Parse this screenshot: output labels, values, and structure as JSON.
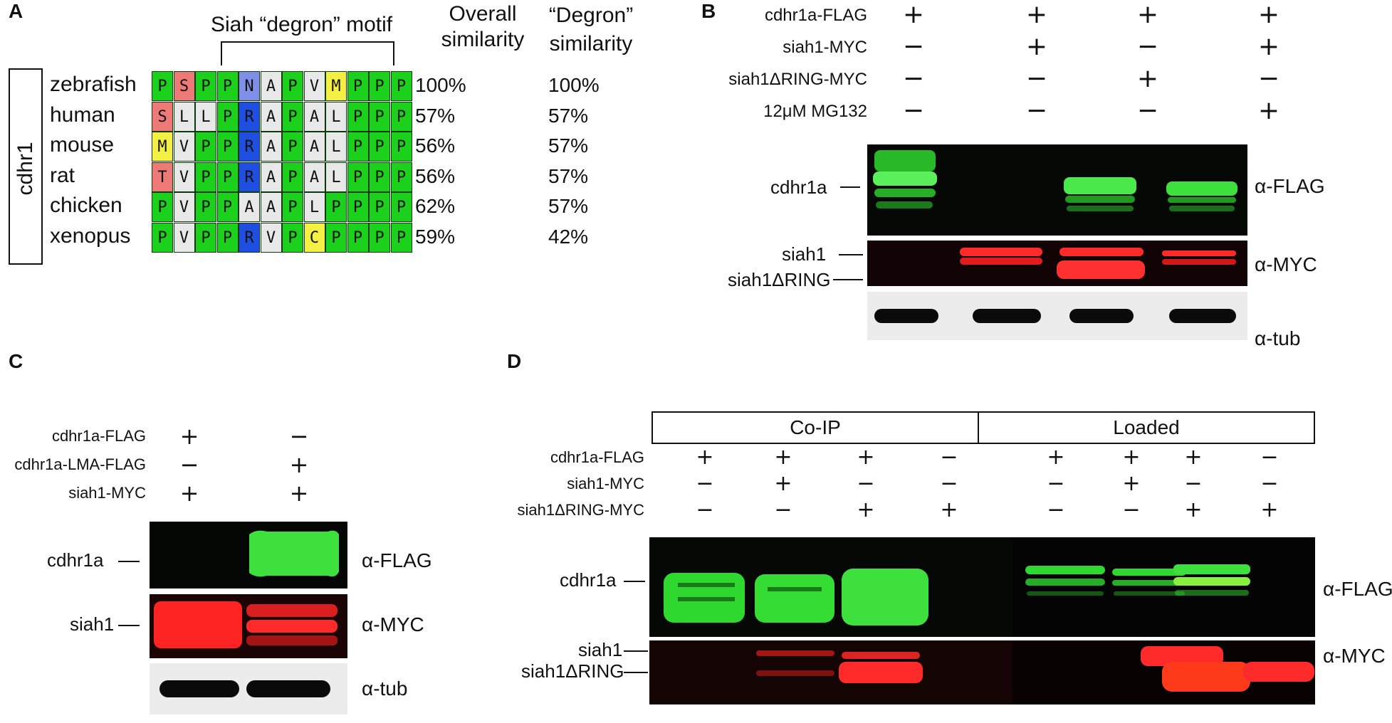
{
  "panels": {
    "A": {
      "label": "A",
      "motif_title": "Siah “degron” motif",
      "col_overall": [
        "Overall",
        "similarity"
      ],
      "col_degron": [
        "“Degron”",
        "similarity"
      ],
      "group_label": "cdhr1",
      "rows": [
        {
          "species": "zebrafish",
          "seq": [
            "P",
            "S",
            "P",
            "P",
            "N",
            "A",
            "P",
            "V",
            "M",
            "P",
            "P",
            "P"
          ],
          "overall": "100%",
          "degron": "100%"
        },
        {
          "species": "human",
          "seq": [
            "S",
            "L",
            "L",
            "P",
            "R",
            "A",
            "P",
            "A",
            "L",
            "P",
            "P",
            "P"
          ],
          "overall": "57%",
          "degron": "57%"
        },
        {
          "species": "mouse",
          "seq": [
            "M",
            "V",
            "P",
            "P",
            "R",
            "A",
            "P",
            "A",
            "L",
            "P",
            "P",
            "P"
          ],
          "overall": "56%",
          "degron": "57%"
        },
        {
          "species": "rat",
          "seq": [
            "T",
            "V",
            "P",
            "P",
            "R",
            "A",
            "P",
            "A",
            "L",
            "P",
            "P",
            "P"
          ],
          "overall": "56%",
          "degron": "57%"
        },
        {
          "species": "chicken",
          "seq": [
            "P",
            "V",
            "P",
            "P",
            "A",
            "A",
            "P",
            "L",
            "P",
            "P",
            "P",
            "P"
          ],
          "overall": "62%",
          "degron": "57%"
        },
        {
          "species": "xenopus",
          "seq": [
            "P",
            "V",
            "P",
            "P",
            "R",
            "V",
            "P",
            "C",
            "P",
            "P",
            "P",
            "P"
          ],
          "overall": "59%",
          "degron": "42%"
        }
      ]
    },
    "B": {
      "label": "B",
      "conditions": [
        {
          "name": "cdhr1a-FLAG",
          "values": [
            "+",
            "+",
            "+",
            "+"
          ]
        },
        {
          "name": "siah1-MYC",
          "values": [
            "−",
            "+",
            "−",
            "+"
          ]
        },
        {
          "name": "siah1ΔRING-MYC",
          "values": [
            "−",
            "−",
            "+",
            "−"
          ]
        },
        {
          "name": "12μM MG132",
          "values": [
            "−",
            "−",
            "−",
            "+"
          ]
        }
      ],
      "band_labels": {
        "cdhr1a": "cdhr1a",
        "siah1": "siah1",
        "siah1dring": "siah1ΔRING"
      },
      "antibodies": {
        "flag": "α-FLAG",
        "myc": "α-MYC",
        "tub": "α-tub"
      }
    },
    "C": {
      "label": "C",
      "conditions": [
        {
          "name": "cdhr1a-FLAG",
          "values": [
            "+",
            "−"
          ]
        },
        {
          "name": "cdhr1a-LMA-FLAG",
          "values": [
            "−",
            "+"
          ]
        },
        {
          "name": "siah1-MYC",
          "values": [
            "+",
            "+"
          ]
        }
      ],
      "band_labels": {
        "cdhr1a": "cdhr1a",
        "siah1": "siah1"
      },
      "antibodies": {
        "flag": "α-FLAG",
        "myc": "α-MYC",
        "tub": "α-tub"
      }
    },
    "D": {
      "label": "D",
      "groups": {
        "coip": "Co-IP",
        "loaded": "Loaded"
      },
      "conditions": [
        {
          "name": "cdhr1a-FLAG",
          "values": [
            "+",
            "+",
            "+",
            "−",
            "+",
            "+",
            "+",
            "−"
          ]
        },
        {
          "name": "siah1-MYC",
          "values": [
            "−",
            "+",
            "−",
            "−",
            "−",
            "+",
            "−",
            "−"
          ]
        },
        {
          "name": "siah1ΔRING-MYC",
          "values": [
            "−",
            "−",
            "+",
            "+",
            "−",
            "−",
            "+",
            "+"
          ]
        }
      ],
      "band_labels": {
        "cdhr1a": "cdhr1a",
        "siah1": "siah1",
        "siah1dring": "siah1ΔRING"
      },
      "antibodies": {
        "flag": "α-FLAG",
        "myc": "α-MYC"
      }
    }
  },
  "colors": {
    "flag_band": "#2fd82f",
    "myc_band": "#ff2a2a",
    "tub_band": "#0a0a0a",
    "blot_bg": "#050805",
    "tub_bg": "#ececec"
  }
}
